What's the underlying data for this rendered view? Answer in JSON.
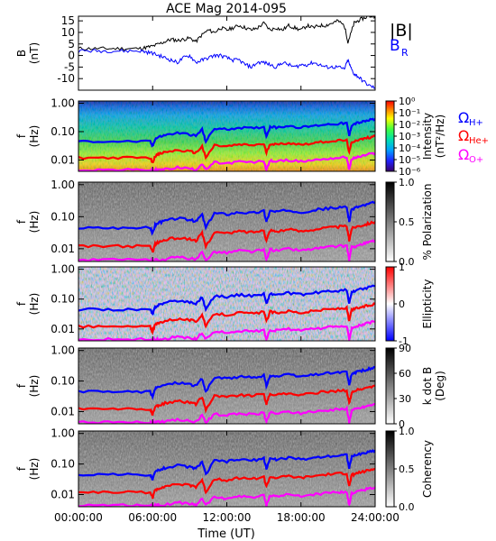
{
  "chart_data": {
    "type": "line",
    "title": "ACE Mag 2014-095",
    "x_axis": {
      "label": "Time (UT)",
      "range_hours": [
        0,
        24
      ],
      "ticks": [
        0,
        6,
        12,
        18,
        24
      ],
      "tick_labels": [
        "00:00:00",
        "06:00:00",
        "12:00:00",
        "18:00:00",
        "24:00:00"
      ]
    },
    "panels": [
      {
        "kind": "line",
        "ylabel": "B",
        "yunit": "(nT)",
        "ylim": [
          -15,
          17
        ],
        "yticks": [
          15,
          10,
          5,
          0,
          -5,
          -10
        ],
        "yticklabels": [
          "15",
          "10",
          "5",
          "0",
          "-5",
          "-10"
        ],
        "legend": [
          {
            "text": "|B|",
            "color": "#000000"
          },
          {
            "text": "B",
            "sub": "R",
            "color": "#0000ff"
          }
        ],
        "series": [
          {
            "name": "|B|",
            "color": "#000000",
            "x": [
              0,
              1,
              2,
              3,
              4,
              5,
              5.5,
              6,
              6.5,
              7,
              7.5,
              8,
              8.5,
              9,
              9.5,
              10,
              10.5,
              11,
              11.5,
              12,
              12.5,
              13,
              13.5,
              14,
              14.5,
              15,
              15.5,
              16,
              16.5,
              17,
              17.5,
              18,
              18.5,
              19,
              19.5,
              20,
              20.5,
              21,
              21.5,
              21.8,
              22,
              22.3,
              22.6,
              23,
              23.5,
              24
            ],
            "y": [
              3,
              3,
              3,
              3,
              3,
              3,
              3.5,
              4,
              5,
              6,
              7,
              6.5,
              7,
              7.5,
              6,
              9,
              11,
              10,
              12,
              11,
              12,
              13,
              12,
              11,
              12,
              14,
              11,
              12,
              11,
              13,
              12,
              11,
              13,
              12,
              13,
              13,
              14,
              15,
              13,
              6,
              9,
              14,
              15,
              16,
              17,
              17
            ]
          },
          {
            "name": "B_R",
            "color": "#0000ff",
            "x": [
              0,
              1,
              2,
              3,
              4,
              5,
              5.5,
              6,
              6.5,
              7,
              7.5,
              8,
              8.5,
              9,
              9.5,
              10,
              10.5,
              11,
              11.5,
              12,
              12.5,
              13,
              13.5,
              14,
              14.5,
              15,
              15.5,
              16,
              16.5,
              17,
              17.5,
              18,
              18.5,
              19,
              19.5,
              20,
              20.5,
              21,
              21.5,
              21.8,
              22,
              22.3,
              22.6,
              23,
              23.5,
              24
            ],
            "y": [
              2,
              2,
              2,
              2,
              2,
              2,
              1.5,
              1,
              0,
              -1,
              -2,
              -3,
              -1,
              0,
              -3,
              -2,
              -1,
              0,
              0,
              -1,
              -2,
              -2,
              -4,
              -5,
              -3,
              -3,
              -4,
              -5,
              -3,
              -4,
              -5,
              -4,
              -4,
              -3,
              -4,
              -5,
              -5,
              -5,
              -6,
              -2,
              -5,
              -8,
              -9,
              -11,
              -13,
              -14
            ]
          }
        ]
      },
      {
        "kind": "spectrogram",
        "colormap": "rainbow",
        "ylabel": "f",
        "yunit": "(Hz)",
        "ylim": [
          0.004,
          1.2
        ],
        "log_y": true,
        "yticks": [
          1,
          0.1,
          0.01
        ],
        "yticklabels": [
          "1.00",
          "0.10",
          "0.01"
        ],
        "colorbar": {
          "label": "Intensity",
          "unit": "(nT²/Hz)",
          "range": [
            -6,
            0
          ],
          "ticks": [
            0,
            -1,
            -2,
            -3,
            -4,
            -5,
            -6
          ],
          "tick_labels": [
            "10⁰",
            "10⁻¹",
            "10⁻²",
            "10⁻³",
            "10⁻⁴",
            "10⁻⁵",
            "10⁻⁶"
          ]
        },
        "gyro_legend": [
          {
            "text": "Ω",
            "sub": "H+",
            "color": "#0000ff"
          },
          {
            "text": "Ω",
            "sub": "He+",
            "color": "#ff0000"
          },
          {
            "text": "Ω",
            "sub": "O+",
            "color": "#ff00ff"
          }
        ]
      },
      {
        "kind": "spectrogram",
        "colormap": "gray",
        "ylabel": "f",
        "yunit": "(Hz)",
        "ylim": [
          0.004,
          1.2
        ],
        "log_y": true,
        "yticks": [
          1,
          0.1,
          0.01
        ],
        "yticklabels": [
          "1.00",
          "0.10",
          "0.01"
        ],
        "colorbar": {
          "label": "% Polarization",
          "unit": "",
          "range": [
            0,
            1
          ],
          "ticks": [
            1,
            0.5,
            0
          ],
          "tick_labels": [
            "1.0",
            "0.5",
            "0.0"
          ]
        }
      },
      {
        "kind": "spectrogram",
        "colormap": "bwr",
        "ylabel": "f",
        "yunit": "(Hz)",
        "ylim": [
          0.004,
          1.2
        ],
        "log_y": true,
        "yticks": [
          1,
          0.1,
          0.01
        ],
        "yticklabels": [
          "1.00",
          "0.10",
          "0.01"
        ],
        "colorbar": {
          "label": "Ellipticity",
          "unit": "",
          "range": [
            -1,
            1
          ],
          "ticks": [
            1,
            0,
            -1
          ],
          "tick_labels": [
            "1",
            "0",
            "-1"
          ]
        }
      },
      {
        "kind": "spectrogram",
        "colormap": "gray",
        "ylabel": "f",
        "yunit": "(Hz)",
        "ylim": [
          0.004,
          1.2
        ],
        "log_y": true,
        "yticks": [
          1,
          0.1,
          0.01
        ],
        "yticklabels": [
          "1.00",
          "0.10",
          "0.01"
        ],
        "colorbar": {
          "label": "k dot B",
          "unit": "(Deg)",
          "range": [
            0,
            90
          ],
          "ticks": [
            90,
            60,
            30,
            0
          ],
          "tick_labels": [
            "90",
            "60",
            "30",
            "0"
          ]
        }
      },
      {
        "kind": "spectrogram",
        "colormap": "gray",
        "ylabel": "f",
        "yunit": "(Hz)",
        "ylim": [
          0.004,
          1.2
        ],
        "log_y": true,
        "yticks": [
          1,
          0.1,
          0.01
        ],
        "yticklabels": [
          "1.00",
          "0.10",
          "0.01"
        ],
        "colorbar": {
          "label": "Coherency",
          "unit": "",
          "range": [
            0,
            1
          ],
          "ticks": [
            1,
            0.5,
            0
          ],
          "tick_labels": [
            "1.0",
            "0.5",
            "0.0"
          ]
        }
      }
    ],
    "gyrofrequency_curves": [
      {
        "name": "H+",
        "color": "#0000ff",
        "x": [
          0,
          2,
          4,
          5.8,
          6,
          6.2,
          6.5,
          7,
          8,
          9,
          9.5,
          10,
          10.3,
          11,
          12,
          13,
          14,
          15,
          15.2,
          15.5,
          16,
          17,
          18,
          19,
          20,
          21,
          21.7,
          21.9,
          22.1,
          22.5,
          23,
          23.5,
          24
        ],
        "y": [
          0.045,
          0.045,
          0.045,
          0.045,
          0.03,
          0.055,
          0.065,
          0.075,
          0.09,
          0.08,
          0.07,
          0.12,
          0.045,
          0.13,
          0.12,
          0.14,
          0.13,
          0.15,
          0.07,
          0.15,
          0.14,
          0.16,
          0.14,
          0.16,
          0.18,
          0.19,
          0.2,
          0.07,
          0.17,
          0.2,
          0.22,
          0.25,
          0.28
        ]
      },
      {
        "name": "He+",
        "color": "#ff0000",
        "x": [
          0,
          2,
          4,
          5.8,
          6,
          6.2,
          6.5,
          7,
          8,
          9,
          9.5,
          10,
          10.3,
          11,
          12,
          13,
          14,
          15,
          15.2,
          15.5,
          16,
          17,
          18,
          19,
          20,
          21,
          21.7,
          21.9,
          22.1,
          22.5,
          23,
          23.5,
          24
        ],
        "y": [
          0.012,
          0.012,
          0.012,
          0.012,
          0.008,
          0.014,
          0.016,
          0.019,
          0.022,
          0.02,
          0.018,
          0.03,
          0.012,
          0.033,
          0.03,
          0.035,
          0.033,
          0.037,
          0.018,
          0.038,
          0.035,
          0.04,
          0.035,
          0.04,
          0.045,
          0.048,
          0.05,
          0.018,
          0.043,
          0.05,
          0.055,
          0.062,
          0.07
        ]
      },
      {
        "name": "O+",
        "color": "#ff00ff",
        "x": [
          0,
          2,
          4,
          5.8,
          6,
          6.2,
          6.5,
          7,
          8,
          9,
          9.5,
          10,
          10.3,
          11,
          12,
          13,
          14,
          15,
          15.2,
          15.5,
          16,
          17,
          18,
          19,
          20,
          21,
          21.7,
          21.9,
          22.1,
          22.5,
          23,
          23.5,
          24
        ],
        "y": [
          0.0045,
          0.0045,
          0.0045,
          0.0045,
          0.0042,
          0.0045,
          0.0045,
          0.0047,
          0.0055,
          0.005,
          0.0045,
          0.0075,
          0.0045,
          0.0082,
          0.0075,
          0.0088,
          0.0082,
          0.0092,
          0.0045,
          0.0095,
          0.0088,
          0.01,
          0.0088,
          0.01,
          0.011,
          0.012,
          0.0125,
          0.0045,
          0.011,
          0.0125,
          0.014,
          0.016,
          0.0175
        ]
      }
    ]
  }
}
